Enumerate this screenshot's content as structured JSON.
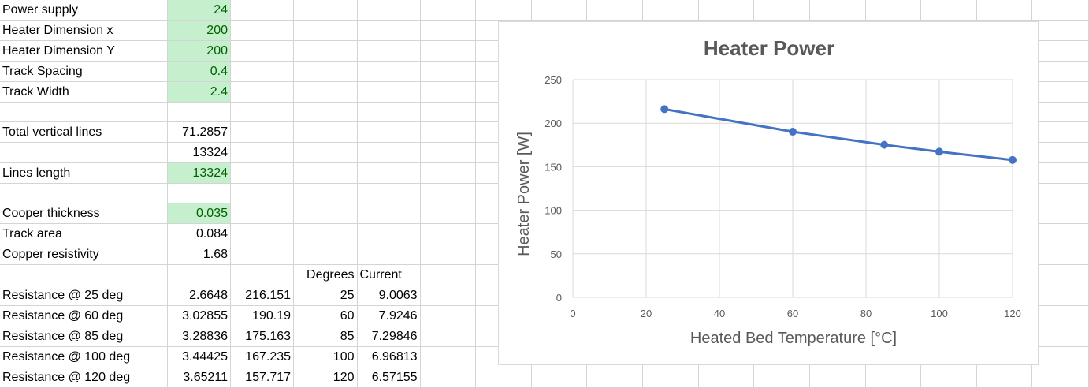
{
  "sheet": {
    "rows": [
      [
        "Power supply",
        "24",
        "",
        "",
        "",
        "",
        "",
        "",
        "",
        "",
        "",
        "",
        "",
        "",
        "",
        "",
        ""
      ],
      [
        "Heater Dimension x",
        "200",
        "",
        "",
        "",
        "",
        "",
        "",
        "",
        "",
        "",
        "",
        "",
        "",
        "",
        "",
        ""
      ],
      [
        "Heater Dimension Y",
        "200",
        "",
        "",
        "",
        "",
        "",
        "",
        "",
        "",
        "",
        "",
        "",
        "",
        "",
        "",
        ""
      ],
      [
        "Track Spacing",
        "0.4",
        "",
        "",
        "",
        "",
        "",
        "",
        "",
        "",
        "",
        "",
        "",
        "",
        "",
        "",
        ""
      ],
      [
        "Track Width",
        "2.4",
        "",
        "",
        "",
        "",
        "",
        "",
        "",
        "",
        "",
        "",
        "",
        "",
        "",
        "",
        ""
      ],
      [
        "",
        "",
        "",
        "",
        "",
        "",
        "",
        "",
        "",
        "",
        "",
        "",
        "",
        "",
        "",
        "",
        ""
      ],
      [
        "Total vertical lines",
        "71.2857",
        "",
        "",
        "",
        "",
        "",
        "",
        "",
        "",
        "",
        "",
        "",
        "",
        "",
        "",
        ""
      ],
      [
        "",
        "13324",
        "",
        "",
        "",
        "",
        "",
        "",
        "",
        "",
        "",
        "",
        "",
        "",
        "",
        "",
        ""
      ],
      [
        "Lines length",
        "13324",
        "",
        "",
        "",
        "",
        "",
        "",
        "",
        "",
        "",
        "",
        "",
        "",
        "",
        "",
        ""
      ],
      [
        "",
        "",
        "",
        "",
        "",
        "",
        "",
        "",
        "",
        "",
        "",
        "",
        "",
        "",
        "",
        "",
        ""
      ],
      [
        "Cooper thickness",
        "0.035",
        "",
        "",
        "",
        "",
        "",
        "",
        "",
        "",
        "",
        "",
        "",
        "",
        "",
        "",
        ""
      ],
      [
        "Track area",
        "0.084",
        "",
        "",
        "",
        "",
        "",
        "",
        "",
        "",
        "",
        "",
        "",
        "",
        "",
        "",
        ""
      ],
      [
        "Copper resistivity",
        "1.68",
        "",
        "",
        "",
        "",
        "",
        "",
        "",
        "",
        "",
        "",
        "",
        "",
        "",
        "",
        ""
      ],
      [
        "",
        "",
        "",
        "Degrees",
        "Current",
        "",
        "",
        "",
        "",
        "",
        "",
        "",
        "",
        "",
        "",
        "",
        ""
      ],
      [
        "Resistance @ 25 deg",
        "2.6648",
        "216.151",
        "25",
        "9.0063",
        "",
        "",
        "",
        "",
        "",
        "",
        "",
        "",
        "",
        "",
        "",
        ""
      ],
      [
        "Resistance @ 60 deg",
        "3.02855",
        "190.19",
        "60",
        "7.9246",
        "",
        "",
        "",
        "",
        "",
        "",
        "",
        "",
        "",
        "",
        "",
        ""
      ],
      [
        "Resistance @ 85 deg",
        "3.28836",
        "175.163",
        "85",
        "7.29846",
        "",
        "",
        "",
        "",
        "",
        "",
        "",
        "",
        "",
        "",
        "",
        ""
      ],
      [
        "Resistance @ 100 deg",
        "3.44425",
        "167.235",
        "100",
        "6.96813",
        "",
        "",
        "",
        "",
        "",
        "",
        "",
        "",
        "",
        "",
        "",
        ""
      ],
      [
        "Resistance @ 120 deg",
        "3.65211",
        "157.717",
        "120",
        "6.57155",
        "",
        "",
        "",
        "",
        "",
        "",
        "",
        "",
        "",
        "",
        "",
        ""
      ]
    ],
    "highlight_color": "#c6efce",
    "highlight_text_color": "#006100"
  },
  "chart_data": {
    "type": "line",
    "title": "Heater Power",
    "xlabel": "Heated Bed Temperature [°C]",
    "ylabel": "Heater Power [W]",
    "x": [
      25,
      60,
      85,
      100,
      120
    ],
    "series": [
      {
        "values": [
          216.151,
          190.19,
          175.163,
          167.235,
          157.717
        ]
      }
    ],
    "xlim": [
      0,
      120
    ],
    "ylim": [
      0,
      250
    ],
    "xticks": [
      0,
      20,
      40,
      60,
      80,
      100,
      120
    ],
    "yticks": [
      0,
      50,
      100,
      150,
      200,
      250
    ],
    "grid": true,
    "legend": "none",
    "series_color": "#4472c4"
  }
}
